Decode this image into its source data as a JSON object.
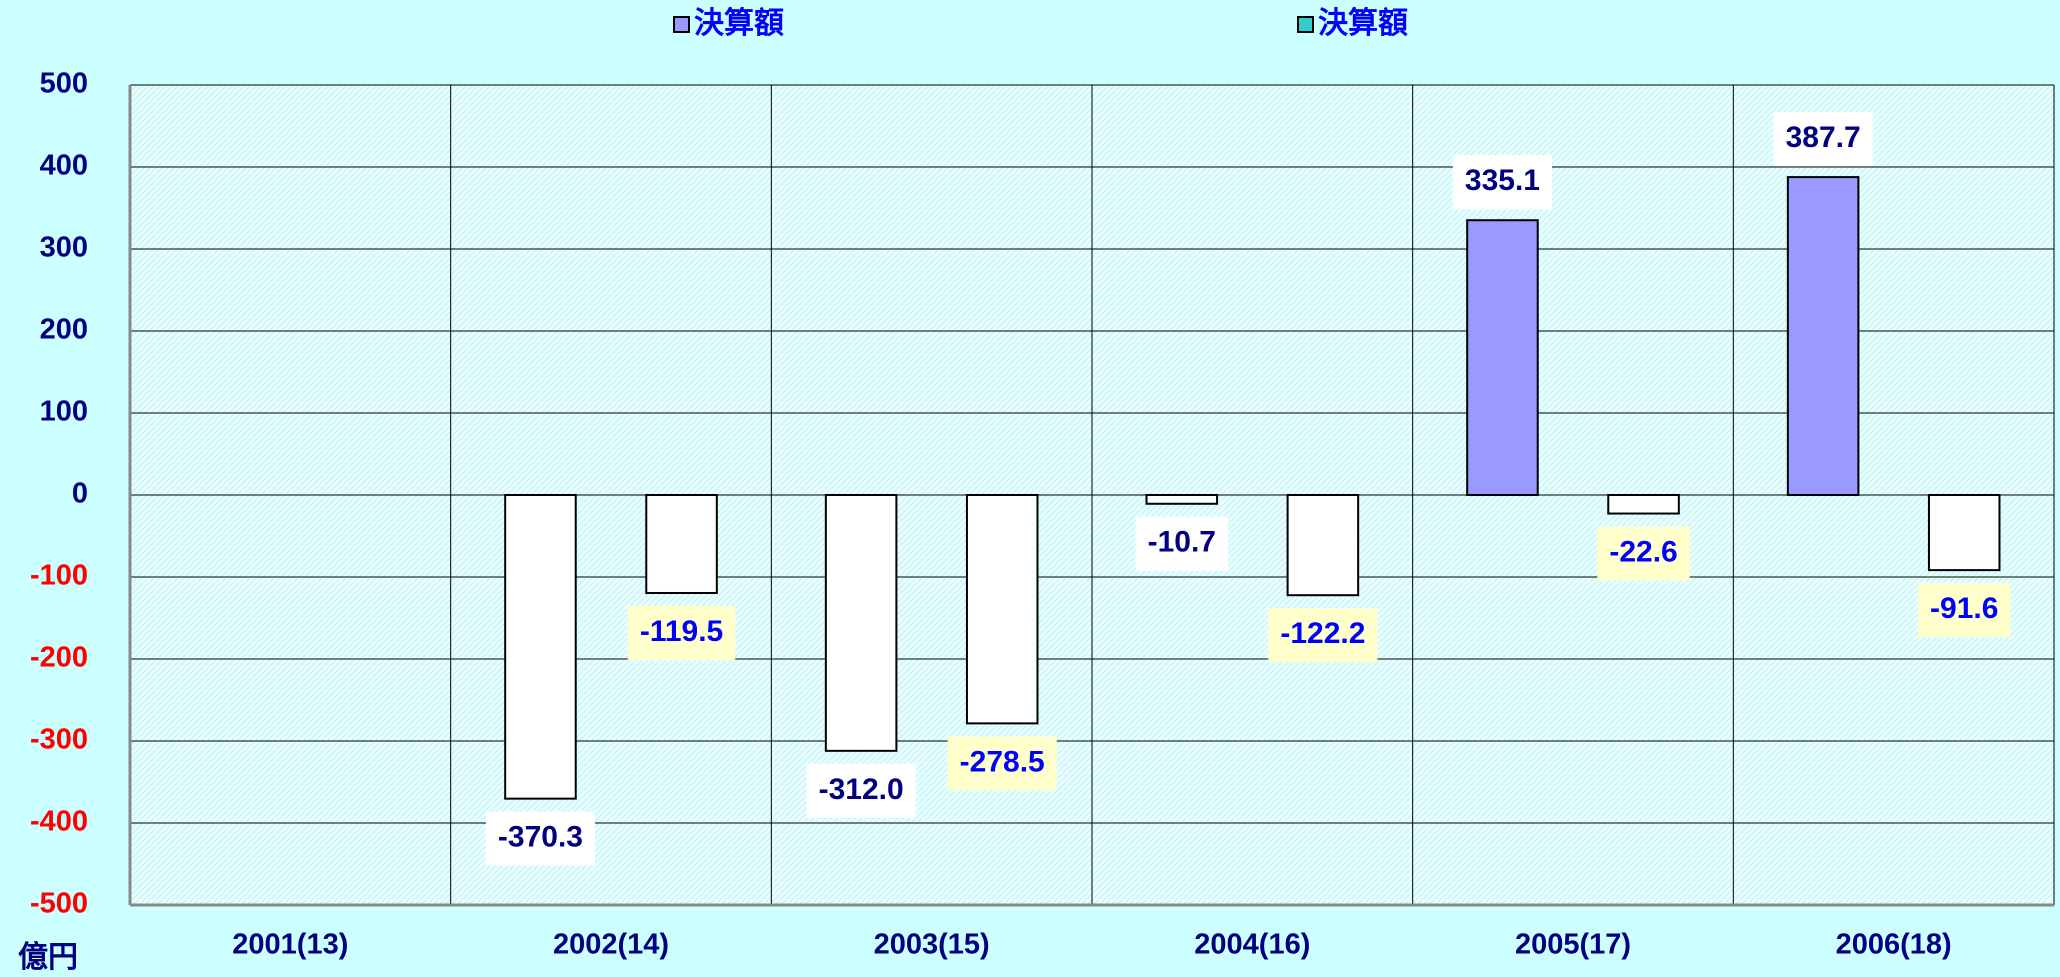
{
  "chart_data": {
    "type": "bar",
    "y_unit": "億円",
    "categories": [
      "2001(13)",
      "2002(14)",
      "2003(15)",
      "2004(16)",
      "2005(17)",
      "2006(18)"
    ],
    "series": [
      {
        "name": "決算額",
        "color": "#9999ff",
        "values": [
          null,
          -370.3,
          -312.0,
          -10.7,
          335.1,
          387.7
        ],
        "value_labels": [
          null,
          "-370.3",
          "-312.0",
          "-10.7",
          "335.1",
          "387.7"
        ]
      },
      {
        "name": "決算額",
        "color": "#33cccc",
        "values": [
          null,
          -119.5,
          -278.5,
          -122.2,
          -22.6,
          -91.6
        ],
        "value_labels": [
          null,
          "-119.5",
          "-278.5",
          "-122.2",
          "-22.6",
          "-91.6"
        ]
      }
    ],
    "negative_color": "#ffffff",
    "ylim": [
      -500,
      500
    ],
    "yticks": [
      -500,
      -400,
      -300,
      -200,
      -100,
      0,
      100,
      200,
      300,
      400,
      500
    ],
    "grid": true
  }
}
